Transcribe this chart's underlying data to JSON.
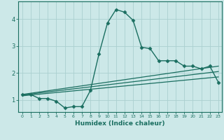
{
  "xlabel": "Humidex (Indice chaleur)",
  "bg_color": "#cce8e8",
  "grid_color": "#aad0d0",
  "line_color": "#1a6e60",
  "xlim": [
    -0.5,
    23.4
  ],
  "ylim": [
    0.55,
    4.65
  ],
  "xticks": [
    0,
    1,
    2,
    3,
    4,
    5,
    6,
    7,
    8,
    9,
    10,
    11,
    12,
    13,
    14,
    15,
    16,
    17,
    18,
    19,
    20,
    21,
    22,
    23
  ],
  "yticks": [
    1,
    2,
    3,
    4
  ],
  "series": [
    {
      "x": [
        0,
        1,
        2,
        3,
        4,
        5,
        6,
        7,
        8,
        9,
        10,
        11,
        12,
        13,
        14,
        15,
        16,
        17,
        18,
        19,
        20,
        21,
        22,
        23
      ],
      "y": [
        1.2,
        1.2,
        1.05,
        1.05,
        0.95,
        0.7,
        0.75,
        0.75,
        1.35,
        2.7,
        3.85,
        4.35,
        4.25,
        3.95,
        2.95,
        2.9,
        2.45,
        2.45,
        2.45,
        2.25,
        2.25,
        2.15,
        2.25,
        1.65
      ],
      "marker": "D",
      "markersize": 2.5,
      "linewidth": 1.0
    },
    {
      "x": [
        0,
        23
      ],
      "y": [
        1.2,
        2.25
      ],
      "marker": null,
      "linewidth": 0.9
    },
    {
      "x": [
        0,
        23
      ],
      "y": [
        1.18,
        2.05
      ],
      "marker": null,
      "linewidth": 0.9
    },
    {
      "x": [
        0,
        23
      ],
      "y": [
        1.15,
        1.85
      ],
      "marker": null,
      "linewidth": 0.9
    }
  ]
}
